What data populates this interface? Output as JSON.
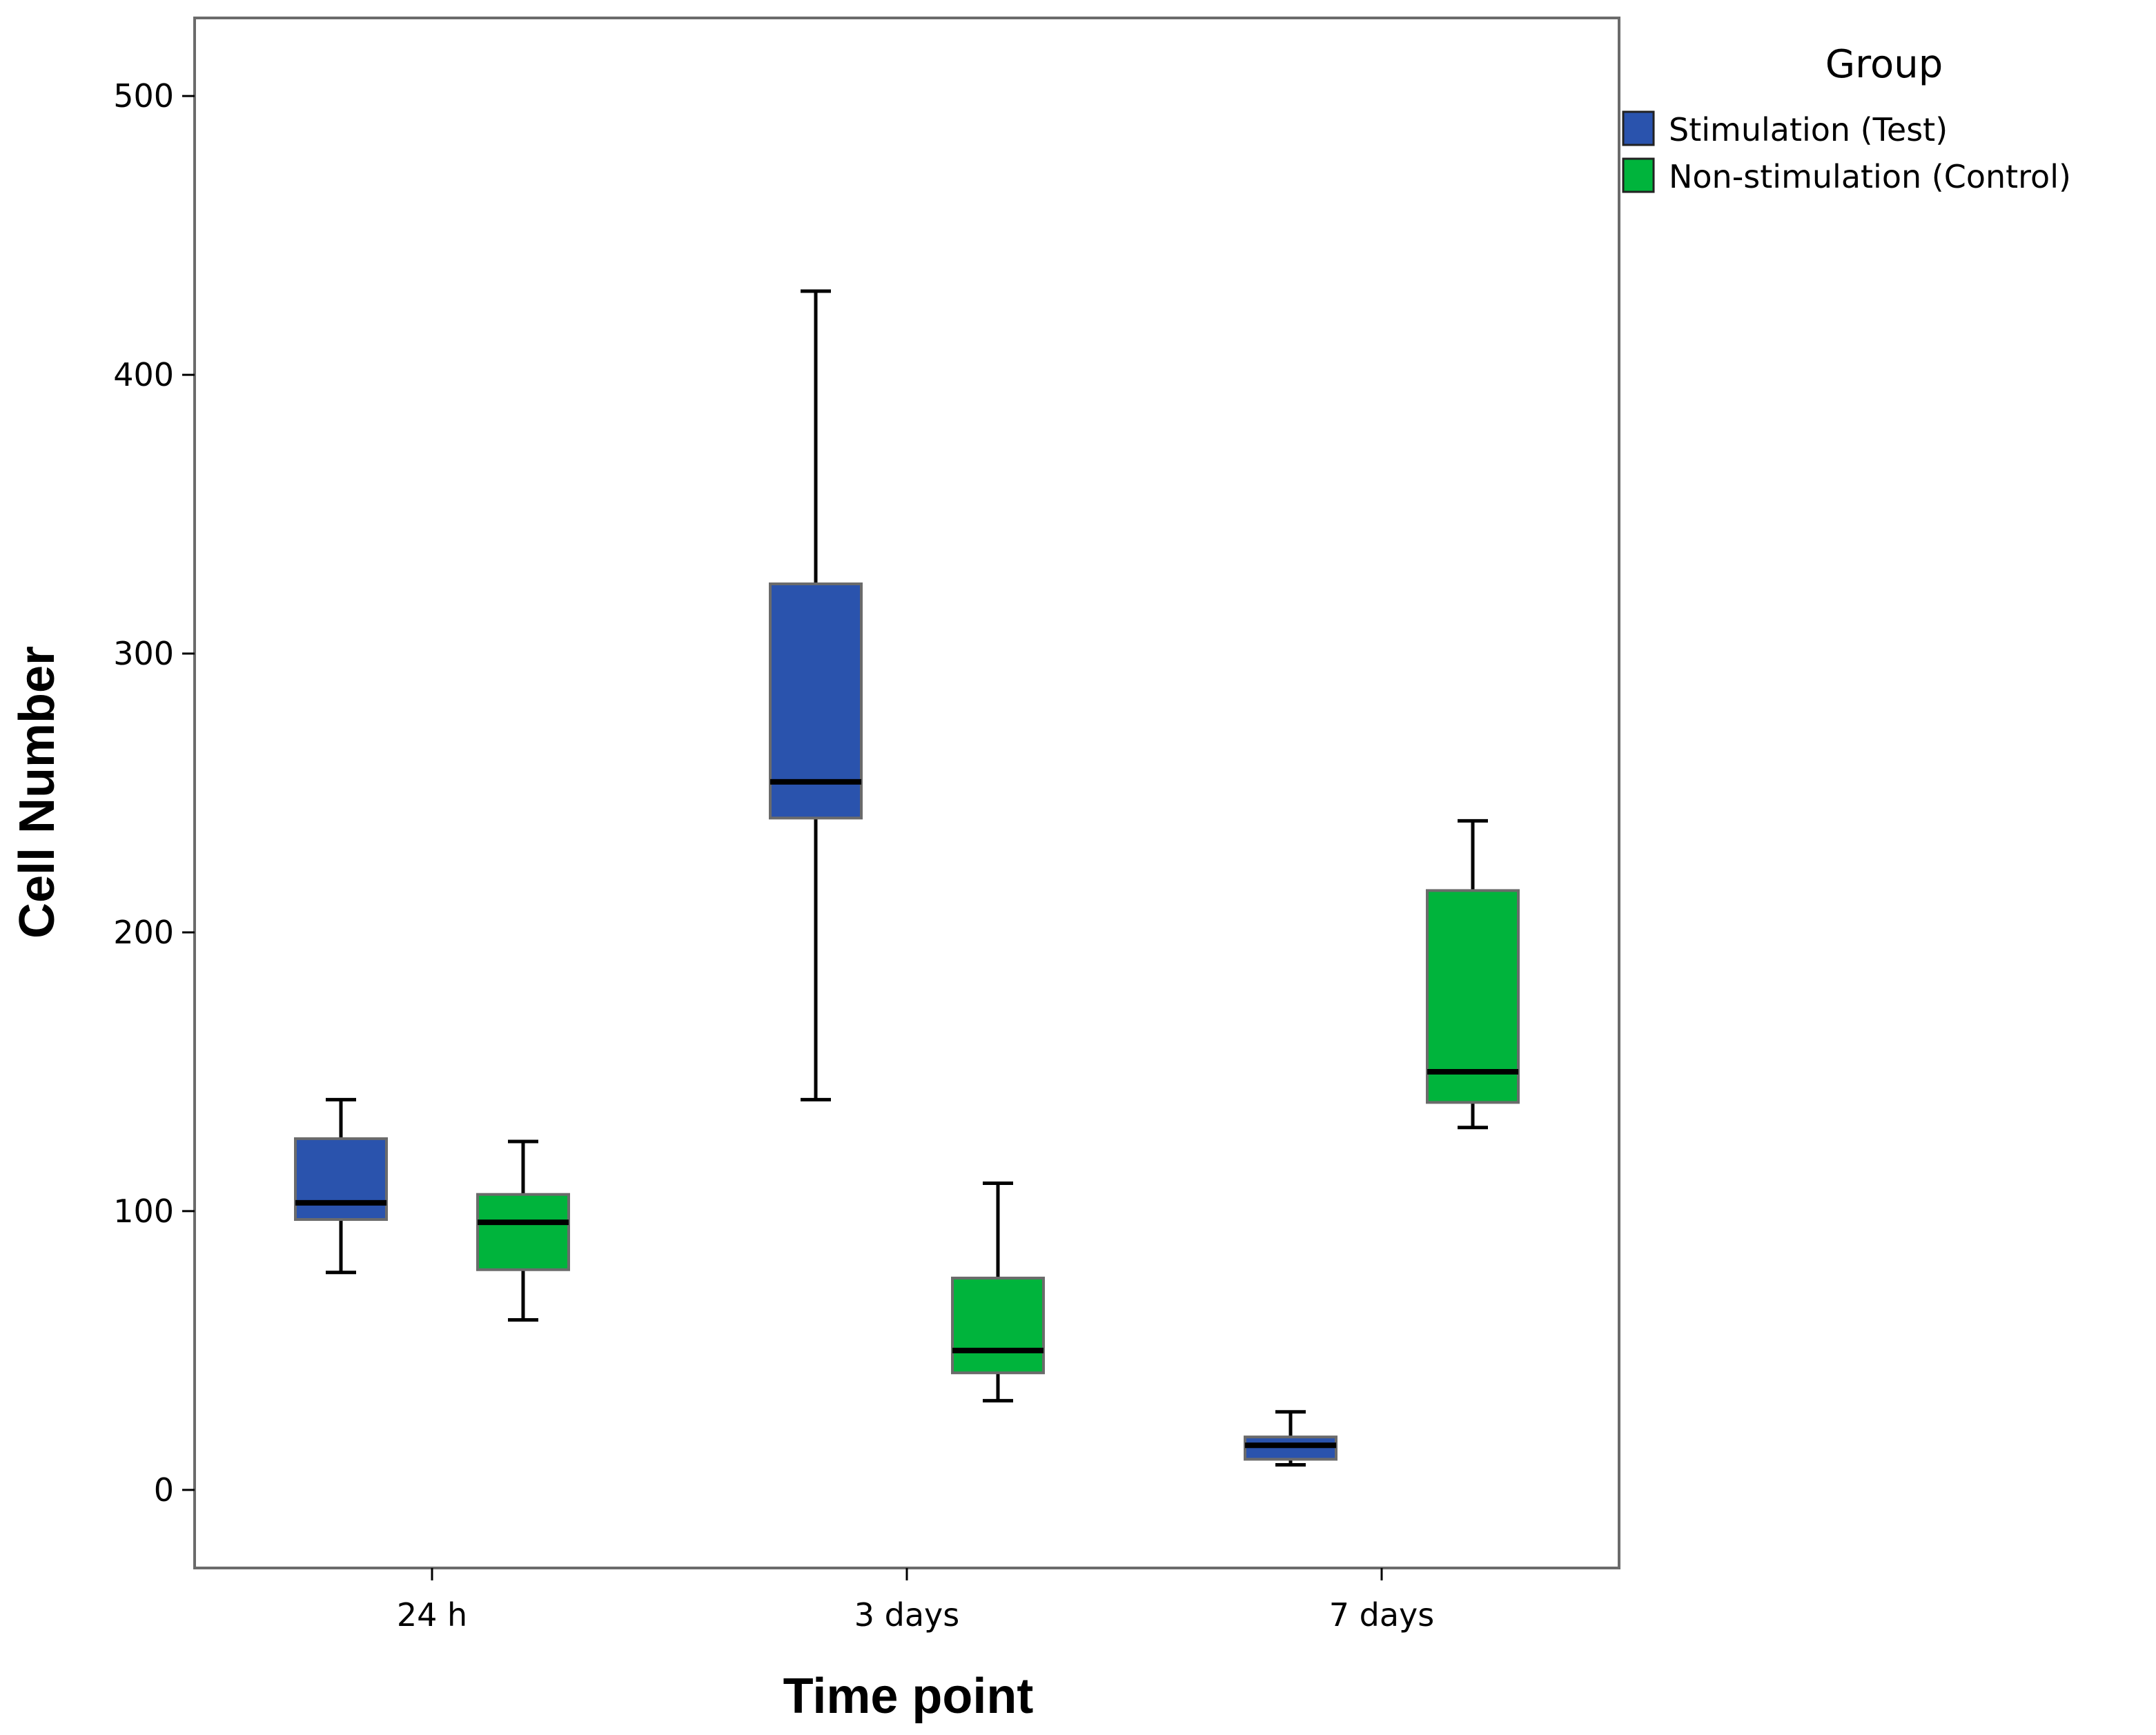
{
  "chart_data": {
    "type": "boxplot",
    "xlabel": "Time point",
    "ylabel": "Cell Number",
    "categories": [
      "24 h",
      "3 days",
      "7 days"
    ],
    "ylim": [
      -28,
      528
    ],
    "yticks": [
      0,
      100,
      200,
      300,
      400,
      500
    ],
    "grid": false,
    "legend": {
      "title": "Group",
      "placement": "top-right-outside",
      "entries": [
        {
          "name": "Stimulation (Test)",
          "color": "#2a53ad"
        },
        {
          "name": "Non-stimulation (Control)",
          "color": "#00b43c"
        }
      ]
    },
    "series": [
      {
        "name": "Stimulation (Test)",
        "color": "#2a53ad",
        "boxes": [
          {
            "category": "24 h",
            "min": 78,
            "q1": 97,
            "median": 103,
            "q3": 126,
            "max": 140
          },
          {
            "category": "3 days",
            "min": 140,
            "q1": 241,
            "median": 254,
            "q3": 325,
            "max": 430
          },
          {
            "category": "7 days",
            "min": 9,
            "q1": 11,
            "median": 16,
            "q3": 19,
            "max": 28
          }
        ]
      },
      {
        "name": "Non-stimulation (Control)",
        "color": "#00b43c",
        "boxes": [
          {
            "category": "24 h",
            "min": 61,
            "q1": 79,
            "median": 96,
            "q3": 106,
            "max": 125
          },
          {
            "category": "3 days",
            "min": 32,
            "q1": 42,
            "median": 50,
            "q3": 76,
            "max": 110
          },
          {
            "category": "7 days",
            "min": 130,
            "q1": 139,
            "median": 150,
            "q3": 215,
            "max": 240
          }
        ]
      }
    ]
  }
}
